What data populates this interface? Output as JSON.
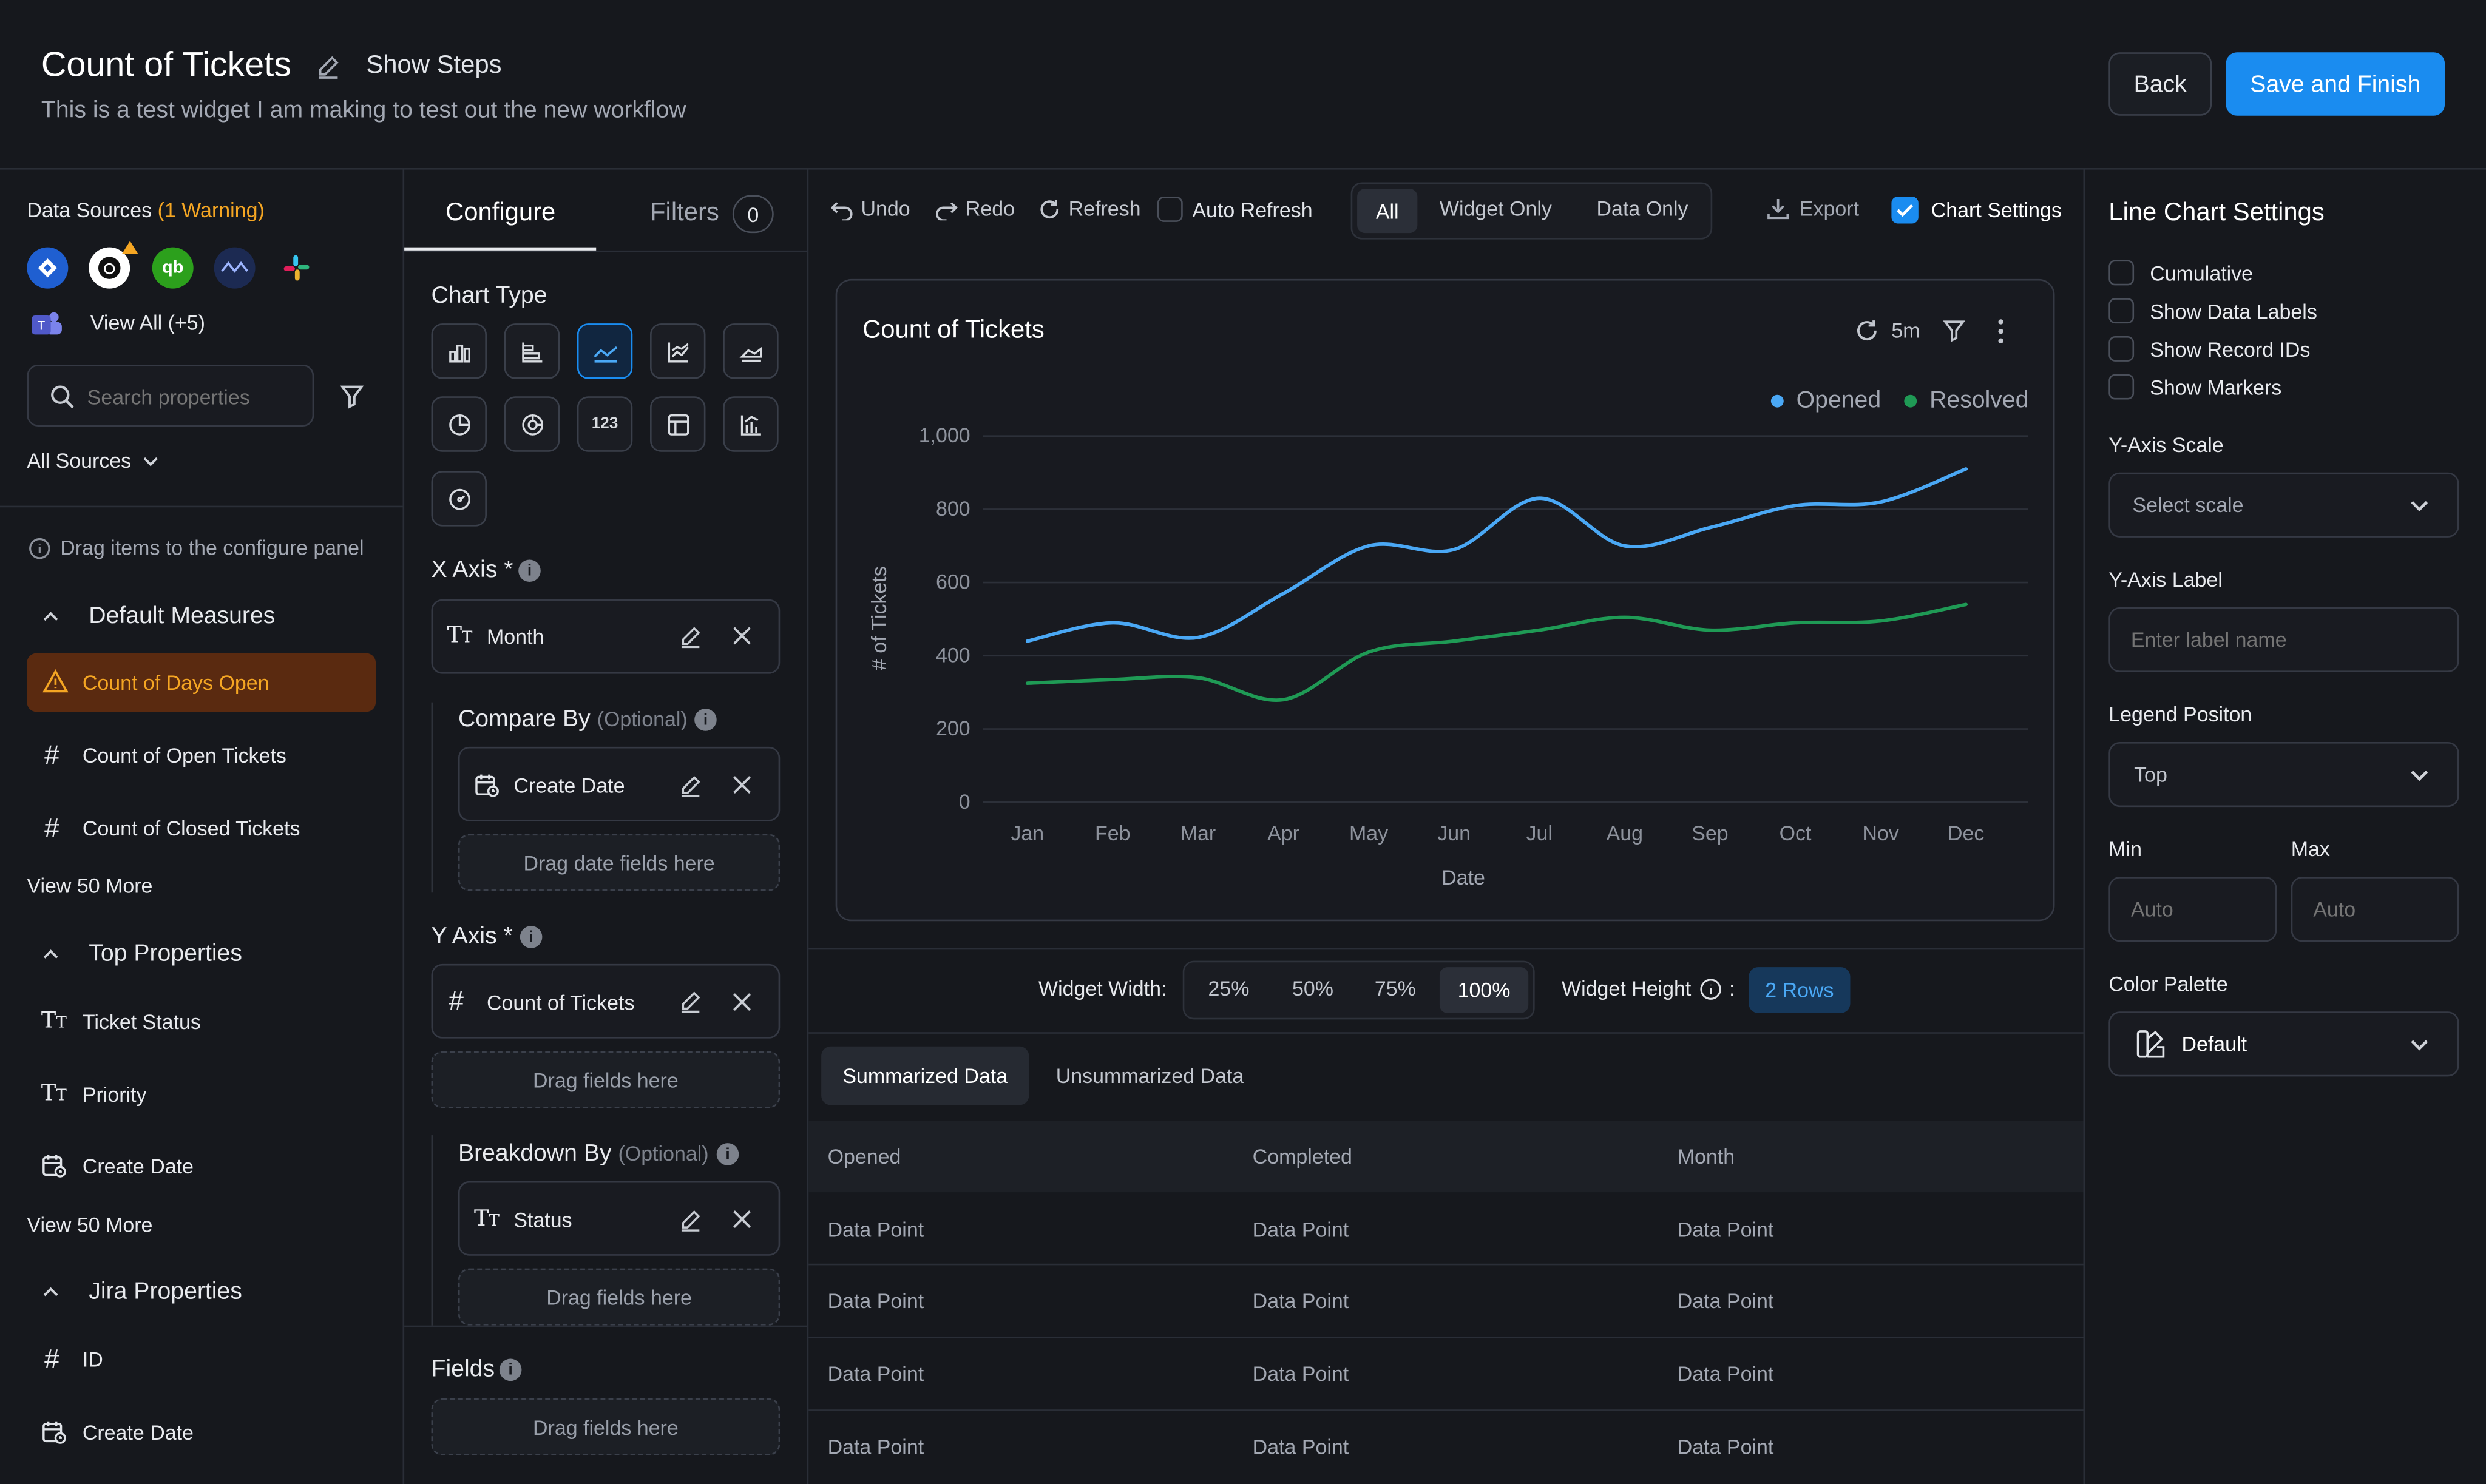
{
  "header": {
    "title": "Count of Tickets",
    "show_steps": "Show Steps",
    "description": "This is a test widget I am making to test out the new workflow",
    "back": "Back",
    "save": "Save and Finish"
  },
  "sidebar": {
    "sources_label": "Data Sources",
    "sources_warning": "(1 Warning)",
    "view_all": "View All (+5)",
    "search_placeholder": "Search properties",
    "all_sources": "All Sources",
    "drag_hint": "Drag items to the configure panel",
    "groups": [
      {
        "title": "Default Measures",
        "items": [
          "Count of Days Open",
          "Count of Open Tickets",
          "Count of Closed Tickets"
        ],
        "more": "View 50 More"
      },
      {
        "title": "Top Properties",
        "items": [
          "Ticket Status",
          "Priority",
          "Create Date"
        ],
        "more": "View 50 More"
      },
      {
        "title": "Jira Properties",
        "items": [
          "ID",
          "Create Date"
        ]
      }
    ]
  },
  "configure": {
    "tab_configure": "Configure",
    "tab_filters": "Filters",
    "filters_count": "0",
    "chart_type": "Chart Type",
    "x_axis": "X Axis *",
    "x_value": "Month",
    "compare_by": "Compare By",
    "optional": "(Optional)",
    "compare_value": "Create Date",
    "drag_date": "Drag date fields here",
    "y_axis": "Y Axis *",
    "y_value": "Count of Tickets",
    "drag_fields": "Drag fields here",
    "breakdown_by": "Breakdown By",
    "breakdown_value": "Status",
    "fields": "Fields"
  },
  "toolbar": {
    "undo": "Undo",
    "redo": "Redo",
    "refresh": "Refresh",
    "auto_refresh": "Auto Refresh",
    "seg_all": "All",
    "seg_widget": "Widget Only",
    "seg_data": "Data Only",
    "export": "Export",
    "chart_settings": "Chart Settings"
  },
  "widget": {
    "title": "Count of Tickets",
    "refresh_interval": "5m",
    "legend": [
      {
        "name": "Opened",
        "color": "#4aa8f5"
      },
      {
        "name": "Resolved",
        "color": "#1f9a55"
      }
    ],
    "width_label": "Widget Width:",
    "widths": [
      "25%",
      "50%",
      "75%",
      "100%"
    ],
    "selected_width": "100%",
    "height_label": "Widget Height",
    "height_sep": ":",
    "height_value": "2 Rows"
  },
  "chart_data": {
    "type": "line",
    "categories": [
      "Jan",
      "Feb",
      "Mar",
      "Apr",
      "May",
      "Jun",
      "Jul",
      "Aug",
      "Sep",
      "Oct",
      "Nov",
      "Dec"
    ],
    "xlabel": "Date",
    "ylabel": "# of Tickets",
    "ylim": [
      0,
      1000
    ],
    "yticks": [
      "0",
      "200",
      "400",
      "600",
      "800",
      "1,000"
    ],
    "legend_position": "top-right",
    "series": [
      {
        "name": "Opened",
        "color": "#4aa8f5",
        "values": [
          440,
          490,
          450,
          570,
          700,
          690,
          830,
          700,
          750,
          810,
          820,
          910
        ]
      },
      {
        "name": "Resolved",
        "color": "#1f9a55",
        "values": [
          325,
          335,
          340,
          280,
          410,
          440,
          470,
          505,
          470,
          490,
          495,
          540
        ]
      }
    ]
  },
  "table": {
    "tab_summarized": "Summarized Data",
    "tab_unsummarized": "Unsummarized Data",
    "headers": [
      "Opened",
      "Completed",
      "Month"
    ],
    "rows": [
      [
        "Data Point",
        "Data Point",
        "Data Point"
      ],
      [
        "Data Point",
        "Data Point",
        "Data Point"
      ],
      [
        "Data Point",
        "Data Point",
        "Data Point"
      ],
      [
        "Data Point",
        "Data Point",
        "Data Point"
      ]
    ]
  },
  "settings": {
    "title": "Line Chart Settings",
    "options": [
      "Cumulative",
      "Show Data Labels",
      "Show Record IDs",
      "Show Markers"
    ],
    "y_scale_label": "Y-Axis Scale",
    "y_scale_placeholder": "Select scale",
    "y_label_label": "Y-Axis Label",
    "y_label_placeholder": "Enter label name",
    "legend_label": "Legend Positon",
    "legend_value": "Top",
    "min_label": "Min",
    "max_label": "Max",
    "min_placeholder": "Auto",
    "max_placeholder": "Auto",
    "palette_label": "Color Palette",
    "palette_value": "Default"
  },
  "colors": {
    "accent": "#1a8cf0",
    "warning": "#f5a623",
    "opened": "#4aa8f5",
    "resolved": "#1f9a55"
  }
}
